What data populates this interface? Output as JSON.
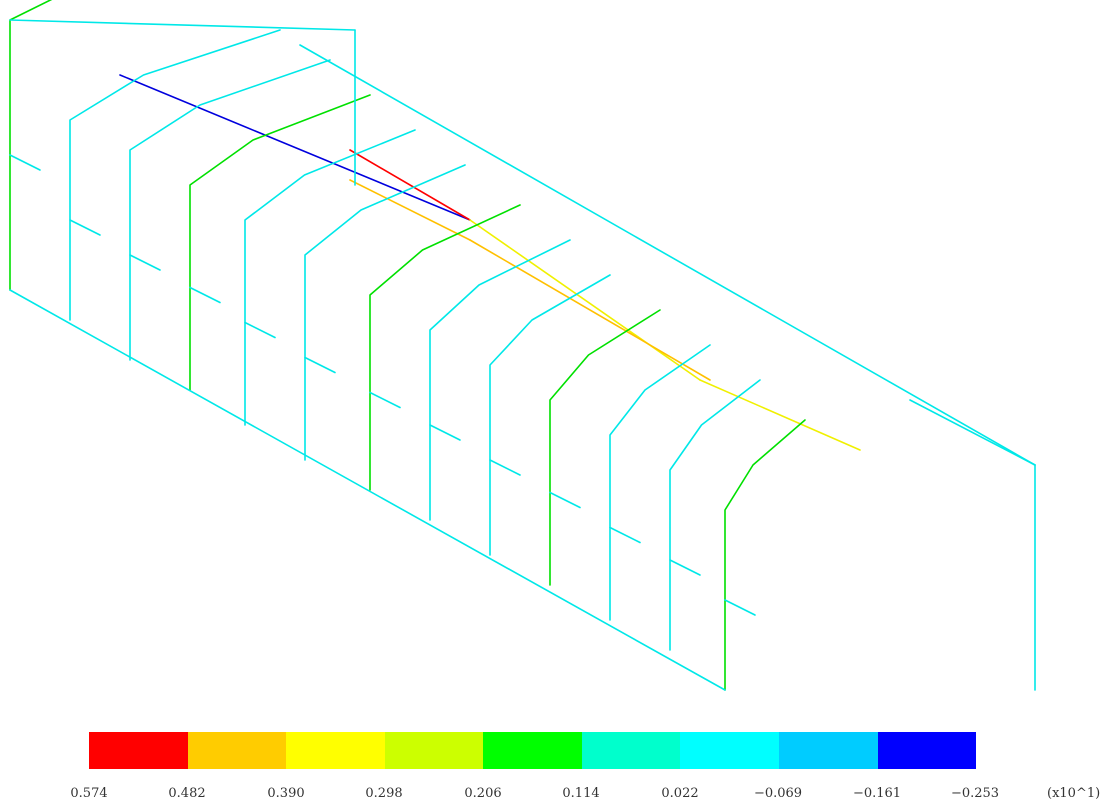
{
  "legend": {
    "colors": [
      "#ff0000",
      "#ffcc00",
      "#ffff00",
      "#ccff00",
      "#00ff00",
      "#00ffcc",
      "#00ffff",
      "#00ccff",
      "#0000ff"
    ],
    "labels": [
      "0.574",
      "0.482",
      "0.390",
      "0.298",
      "0.206",
      "0.114",
      "0.022",
      "−0.069",
      "−0.161",
      "−0.253"
    ],
    "scale_factor": "(x10^1)"
  },
  "model_colors": {
    "default": "#00e8e8",
    "red": "#ff0000",
    "orange": "#ffc000",
    "yellow": "#f0f000",
    "green": "#00e000",
    "blue": "#0000dd",
    "light_blue": "#00c0f0"
  }
}
